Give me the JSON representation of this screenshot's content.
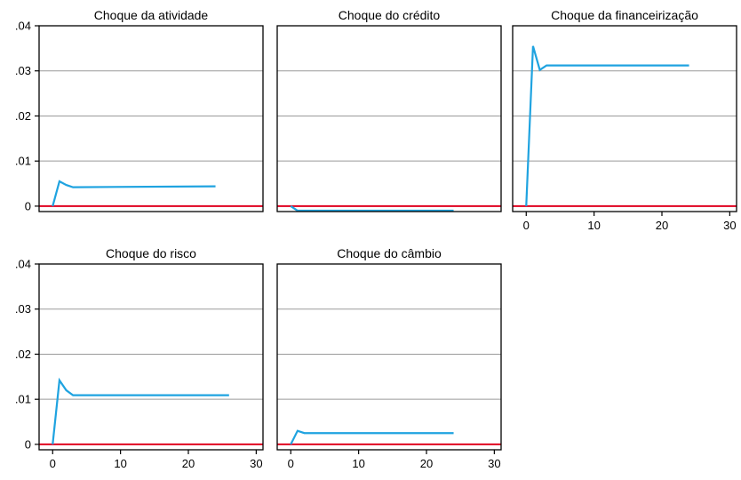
{
  "colors": {
    "series": "#1fa3e0",
    "zero_line": "#e0001f",
    "grid": "#9a9a9a",
    "frame": "#000000"
  },
  "chart_data": [
    {
      "type": "line",
      "title": "Choque da atividade",
      "xlabel": "",
      "ylabel": "",
      "xlim": [
        -2,
        31
      ],
      "ylim": [
        -0.0012,
        0.04
      ],
      "yticks": [
        0,
        0.01,
        0.02,
        0.03,
        0.04
      ],
      "ytick_labels": [
        "0",
        ".01",
        ".02",
        ".03",
        ".04"
      ],
      "xticks": [],
      "xtick_labels": [],
      "grid": true,
      "zero_line": 0,
      "x": [
        0,
        1,
        2,
        3,
        24
      ],
      "y": [
        0,
        0.0055,
        0.0047,
        0.0042,
        0.0044
      ]
    },
    {
      "type": "line",
      "title": "Choque do crédito",
      "xlabel": "",
      "ylabel": "",
      "xlim": [
        -2,
        31
      ],
      "ylim": [
        -0.0012,
        0.04
      ],
      "yticks": [
        0,
        0.01,
        0.02,
        0.03,
        0.04
      ],
      "ytick_labels": [],
      "xticks": [],
      "xtick_labels": [],
      "grid": true,
      "zero_line": 0,
      "x": [
        0,
        1,
        24
      ],
      "y": [
        0,
        -0.001,
        -0.001
      ]
    },
    {
      "type": "line",
      "title": "Choque da financeirização",
      "xlabel": "",
      "ylabel": "",
      "xlim": [
        -2,
        31
      ],
      "ylim": [
        -0.0012,
        0.04
      ],
      "yticks": [
        0,
        0.01,
        0.02,
        0.03,
        0.04
      ],
      "ytick_labels": [],
      "xticks": [
        0,
        10,
        20,
        30
      ],
      "xtick_labels": [
        "0",
        "10",
        "20",
        "30"
      ],
      "grid": true,
      "zero_line": 0,
      "x": [
        0,
        1,
        2,
        3,
        24
      ],
      "y": [
        0,
        0.0355,
        0.0302,
        0.0312,
        0.0312
      ]
    },
    {
      "type": "line",
      "title": "Choque do risco",
      "xlabel": "",
      "ylabel": "",
      "xlim": [
        -2,
        31
      ],
      "ylim": [
        -0.0012,
        0.04
      ],
      "yticks": [
        0,
        0.01,
        0.02,
        0.03,
        0.04
      ],
      "ytick_labels": [
        "0",
        ".01",
        ".02",
        ".03",
        ".04"
      ],
      "xticks": [
        0,
        10,
        20,
        30
      ],
      "xtick_labels": [
        "0",
        "10",
        "20",
        "30"
      ],
      "grid": true,
      "zero_line": 0,
      "x": [
        0,
        1,
        2,
        3,
        26
      ],
      "y": [
        0,
        0.0142,
        0.012,
        0.0109,
        0.0109
      ]
    },
    {
      "type": "line",
      "title": "Choque do câmbio",
      "xlabel": "",
      "ylabel": "",
      "xlim": [
        -2,
        31
      ],
      "ylim": [
        -0.0012,
        0.04
      ],
      "yticks": [
        0,
        0.01,
        0.02,
        0.03,
        0.04
      ],
      "ytick_labels": [],
      "xticks": [
        0,
        10,
        20,
        30
      ],
      "xtick_labels": [
        "0",
        "10",
        "20",
        "30"
      ],
      "grid": true,
      "zero_line": 0,
      "x": [
        0,
        1,
        2,
        24
      ],
      "y": [
        0,
        0.003,
        0.0025,
        0.0025
      ]
    }
  ]
}
